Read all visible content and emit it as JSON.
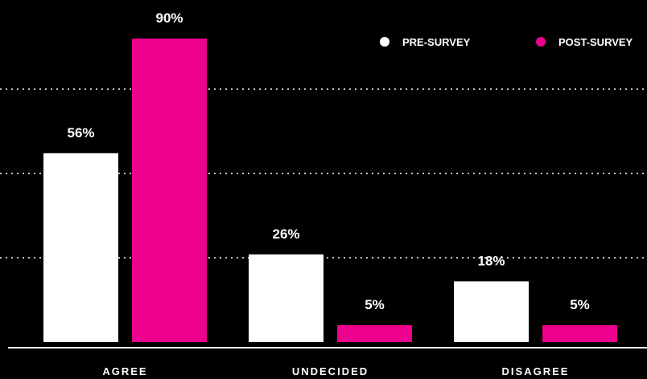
{
  "chart_data": {
    "type": "bar",
    "categories": [
      "AGREE",
      "UNDECIDED",
      "DISAGREE"
    ],
    "series": [
      {
        "name": "PRE-SURVEY",
        "values": [
          56,
          26,
          18
        ],
        "labels": [
          "56%",
          "26%",
          "18%"
        ],
        "color": "#ffffff"
      },
      {
        "name": "POST-SURVEY",
        "values": [
          90,
          5,
          5
        ],
        "labels": [
          "90%",
          "5%",
          "5%"
        ],
        "color": "#ec008c"
      }
    ],
    "ylim": [
      0,
      100
    ],
    "grid": true,
    "legend": "top-right",
    "background": "#000000"
  }
}
